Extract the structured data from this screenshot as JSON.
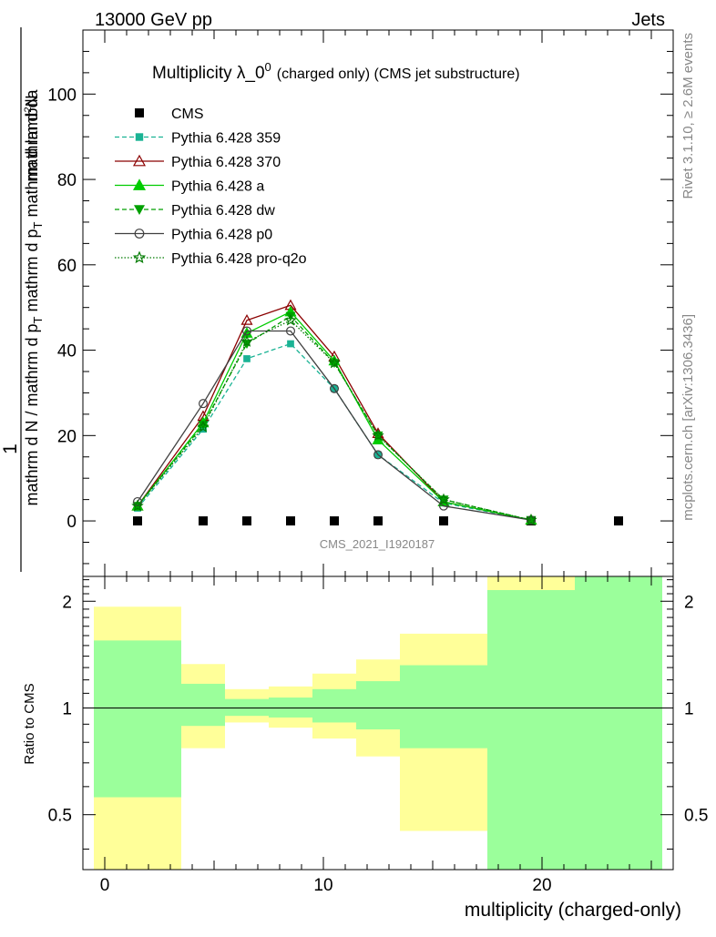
{
  "header": {
    "left": "13000 GeV pp",
    "right": "Jets"
  },
  "right_labels": {
    "rivet": "Rivet 3.1.10, ≥ 2.6M events",
    "site": "mcplots.cern.ch [arXiv:1306.3436]"
  },
  "watermark": "CMS_2021_I1920187",
  "chart_data": [
    {
      "type": "line",
      "title": "Multiplicity λ_0",
      "title_sup": "0",
      "title_suffix": "(charged only) (CMS jet substructure)",
      "ylabel_line1": "1",
      "ylabel_line2": "mathrm d N / mathrm d p_T mathrm d p_T mathrm d lambda",
      "ylabel_display": "mathrm d N / mathrm d p",
      "ylabel_sub1": "T",
      "ylabel_mid": " mathrm d p",
      "ylabel_sub2": "T",
      "ylabel_end": " mathrm d lambda",
      "ynum_display": "mathrm d",
      "ynum_sup": "2",
      "ynum_end": "N",
      "xlim": [
        -1,
        26
      ],
      "ylim": [
        -13,
        115
      ],
      "yticks": [
        0,
        20,
        40,
        60,
        80,
        100
      ],
      "series": [
        {
          "name": "CMS",
          "color": "#000000",
          "marker": "square",
          "dash": "none",
          "x": [
            1.5,
            4.5,
            6.5,
            8.5,
            10.5,
            12.5,
            15.5,
            19.5,
            23.5
          ],
          "y": [
            0,
            0,
            0,
            0,
            0,
            0,
            0,
            0,
            0
          ]
        },
        {
          "name": "Pythia 6.428 359",
          "color": "#1ab394",
          "marker": "square-small",
          "dash": "5,3",
          "x": [
            1.5,
            4.5,
            6.5,
            8.5,
            10.5,
            12.5,
            15.5,
            19.5
          ],
          "y": [
            3.0,
            21.5,
            38.0,
            41.5,
            31.0,
            15.5,
            4.2,
            0.2
          ]
        },
        {
          "name": "Pythia 6.428 370",
          "color": "#8b0000",
          "marker": "triangle-open",
          "dash": "none",
          "x": [
            1.5,
            4.5,
            6.5,
            8.5,
            10.5,
            12.5,
            15.5,
            19.5
          ],
          "y": [
            3.5,
            24.5,
            47.0,
            50.5,
            38.5,
            20.5,
            4.5,
            0.2
          ]
        },
        {
          "name": "Pythia 6.428 a",
          "color": "#00cc00",
          "marker": "triangle",
          "dash": "none",
          "x": [
            1.5,
            4.5,
            6.5,
            8.5,
            10.5,
            12.5,
            15.5,
            19.5
          ],
          "y": [
            3.5,
            23.0,
            44.0,
            49.0,
            37.5,
            19.0,
            4.5,
            0.2
          ]
        },
        {
          "name": "Pythia 6.428 dw",
          "color": "#00a000",
          "marker": "triangle-down",
          "dash": "5,3",
          "x": [
            1.5,
            4.5,
            6.5,
            8.5,
            10.5,
            12.5,
            15.5,
            19.5
          ],
          "y": [
            3.5,
            22.5,
            41.5,
            48.0,
            37.0,
            20.0,
            5.0,
            0.2
          ]
        },
        {
          "name": "Pythia 6.428 p0",
          "color": "#404040",
          "marker": "circle-open",
          "dash": "none",
          "x": [
            1.5,
            4.5,
            6.5,
            8.5,
            10.5,
            12.5,
            15.5,
            19.5
          ],
          "y": [
            4.5,
            27.5,
            44.5,
            44.5,
            31.0,
            15.5,
            3.5,
            0.2
          ]
        },
        {
          "name": "Pythia 6.428 pro-q2o",
          "color": "#007a00",
          "marker": "star-open",
          "dash": "1.5,2",
          "x": [
            1.5,
            4.5,
            6.5,
            8.5,
            10.5,
            12.5,
            15.5,
            19.5
          ],
          "y": [
            3.5,
            22.0,
            42.0,
            47.0,
            37.0,
            20.0,
            5.0,
            0.2
          ]
        }
      ]
    },
    {
      "type": "area",
      "xlabel": "multiplicity (charged-only)",
      "ylabel": "Ratio to CMS",
      "xlim": [
        -1,
        26
      ],
      "ylim": [
        0.35,
        2.35
      ],
      "y_log": true,
      "xticks": [
        0,
        10,
        20
      ],
      "yticks": [
        0.5,
        1,
        2
      ],
      "ytick_labels": [
        "0.5",
        "1",
        "2"
      ],
      "reference_line": 1,
      "bins": [
        {
          "x0": -0.5,
          "x1": 3.5,
          "stat_lo": 0.56,
          "stat_hi": 1.55,
          "tot_lo": 0.35,
          "tot_hi": 1.93
        },
        {
          "x0": 3.5,
          "x1": 5.5,
          "stat_lo": 0.89,
          "stat_hi": 1.17,
          "tot_lo": 0.77,
          "tot_hi": 1.33
        },
        {
          "x0": 5.5,
          "x1": 7.5,
          "stat_lo": 0.95,
          "stat_hi": 1.06,
          "tot_lo": 0.91,
          "tot_hi": 1.13
        },
        {
          "x0": 7.5,
          "x1": 9.5,
          "stat_lo": 0.94,
          "stat_hi": 1.07,
          "tot_lo": 0.88,
          "tot_hi": 1.15
        },
        {
          "x0": 9.5,
          "x1": 11.5,
          "stat_lo": 0.91,
          "stat_hi": 1.13,
          "tot_lo": 0.82,
          "tot_hi": 1.25
        },
        {
          "x0": 11.5,
          "x1": 13.5,
          "stat_lo": 0.87,
          "stat_hi": 1.19,
          "tot_lo": 0.73,
          "tot_hi": 1.37
        },
        {
          "x0": 13.5,
          "x1": 17.5,
          "stat_lo": 0.77,
          "stat_hi": 1.32,
          "tot_lo": 0.45,
          "tot_hi": 1.62
        },
        {
          "x0": 17.5,
          "x1": 21.5,
          "stat_lo": 0.35,
          "stat_hi": 2.15,
          "tot_lo": 0.35,
          "tot_hi": 2.35
        },
        {
          "x0": 21.5,
          "x1": 25.5,
          "stat_lo": 0.35,
          "stat_hi": 2.35,
          "tot_lo": 0.35,
          "tot_hi": 2.35
        }
      ],
      "stat_color": "#9bff9b",
      "tot_color": "#ffff99"
    }
  ]
}
